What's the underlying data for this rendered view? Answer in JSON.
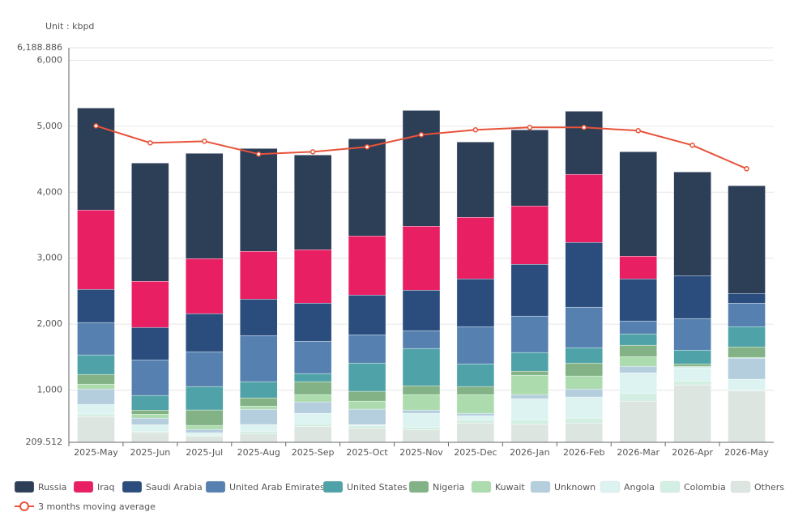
{
  "chart_data": {
    "type": "stacked-bar-line",
    "unit_label": "Unit : kbpd",
    "categories": [
      "2025-May",
      "2025-Jun",
      "2025-Jul",
      "2025-Aug",
      "2025-Sep",
      "2025-Oct",
      "2025-Nov",
      "2025-Dec",
      "2026-Jan",
      "2026-Feb",
      "2026-Mar",
      "2026-Apr",
      "2026-May"
    ],
    "ylim": [
      209.512,
      6188.886
    ],
    "yticks": [
      209.512,
      {
        "value": 1000,
        "label": "1,000"
      },
      {
        "value": 2000,
        "label": "2,000"
      },
      {
        "value": 3000,
        "label": "3,000"
      },
      {
        "value": 4000,
        "label": "4,000"
      },
      {
        "value": 5000,
        "label": "5,000"
      },
      {
        "value": 6000,
        "label": "6,000"
      },
      {
        "value": 6188.886,
        "label": "6,188.886"
      }
    ],
    "grid": true,
    "series": [
      {
        "name": "Others",
        "color": "#dde5e1",
        "values": [
          600,
          356,
          300,
          340,
          450,
          420,
          400,
          500,
          480,
          500,
          834,
          1080,
          990
        ]
      },
      {
        "name": "Colombia",
        "color": "#d3efe3",
        "values": [
          40,
          20,
          20,
          40,
          40,
          40,
          42,
          52,
          72,
          77,
          123,
          61,
          16
        ]
      },
      {
        "name": "Angola",
        "color": "#dcf3f2",
        "values": [
          145,
          100,
          36,
          100,
          160,
          19,
          208,
          61,
          319,
          319,
          307,
          197,
          160
        ]
      },
      {
        "name": "Unknown",
        "color": "#b4cedd",
        "values": [
          233,
          100,
          50,
          230,
          172,
          233,
          49,
          37,
          62,
          122,
          98,
          12,
          319
        ]
      },
      {
        "name": "Kuwait",
        "color": "#acdcad",
        "values": [
          74,
          60,
          60,
          50,
          111,
          122,
          234,
          283,
          294,
          197,
          147,
          12,
          12
        ]
      },
      {
        "name": "Nigeria",
        "color": "#82b286",
        "values": [
          147,
          60,
          234,
          123,
          196,
          148,
          134,
          122,
          61,
          196,
          172,
          37,
          159
        ]
      },
      {
        "name": "United States",
        "color": "#4fa3a8",
        "values": [
          295,
          224,
          355,
          246,
          123,
          429,
          565,
          344,
          283,
          233,
          172,
          208,
          307
        ]
      },
      {
        "name": "United Arab Emirates",
        "color": "#5680b0",
        "values": [
          491,
          540,
          528,
          699,
          490,
          429,
          270,
          564,
          552,
          614,
          196,
          479,
          356
        ]
      },
      {
        "name": "Saudi Arabia",
        "color": "#2b4d7e",
        "values": [
          503,
          491,
          577,
          552,
          577,
          602,
          613,
          724,
          785,
          981,
          638,
          650,
          147
        ]
      },
      {
        "name": "Iraq",
        "color": "#e91f64",
        "values": [
          1202,
          699,
          834,
          724,
          810,
          895,
          970,
          933,
          883,
          1031,
          344,
          0,
          0
        ]
      },
      {
        "name": "Russia",
        "color": "#2d3e57",
        "values": [
          1546,
          1792,
          1595,
          1559,
          1435,
          1473,
          1754,
          1141,
          1154,
          957,
          1582,
          1571,
          1632
        ]
      }
    ],
    "line": {
      "name": "3 months moving average",
      "color": "#e8533a",
      "values": [
        5006,
        4748,
        4773,
        4577,
        4613,
        4687,
        4871,
        4945,
        4982,
        4982,
        4933,
        4712,
        4356
      ]
    }
  }
}
